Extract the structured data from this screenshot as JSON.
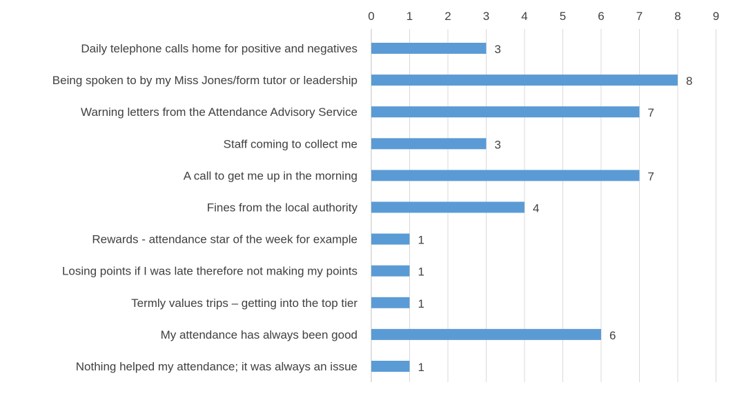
{
  "chart_data": {
    "type": "bar",
    "orientation": "horizontal",
    "title": "",
    "xlabel": "",
    "ylabel": "",
    "x_axis_position": "top",
    "xlim": [
      0,
      9
    ],
    "x_ticks": [
      0,
      1,
      2,
      3,
      4,
      5,
      6,
      7,
      8,
      9
    ],
    "grid": true,
    "legend": "none",
    "bar_color": "#5b9bd5",
    "categories": [
      "Daily telephone calls home for positive and negatives",
      "Being spoken to by my Miss Jones/form tutor or leadership",
      "Warning letters from the Attendance Advisory Service",
      "Staff coming to collect me",
      "A call to get me up in the morning",
      "Fines from the local authority",
      "Rewards - attendance star of the week for example",
      "Losing points if I was late therefore not making my points",
      "Termly values trips – getting into the top tier",
      "My attendance has always been good",
      "Nothing helped my attendance; it was always an issue"
    ],
    "values": [
      3,
      8,
      7,
      3,
      7,
      4,
      1,
      1,
      1,
      6,
      1
    ],
    "data_labels": true
  }
}
